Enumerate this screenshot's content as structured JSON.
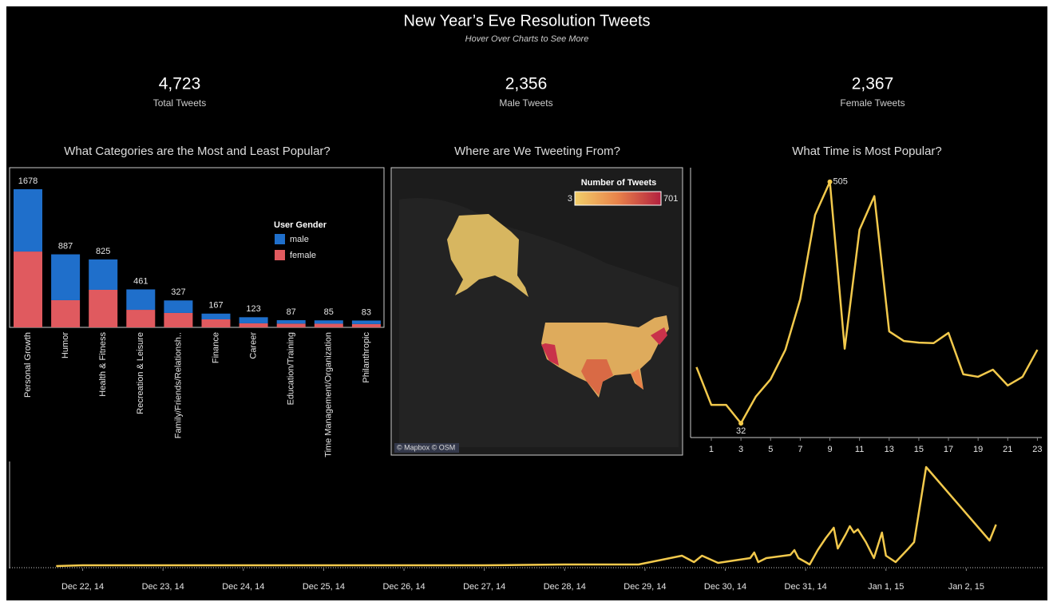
{
  "header": {
    "title": "New Year’s Eve Resolution Tweets",
    "subtitle": "Hover Over Charts to See More"
  },
  "kpis": [
    {
      "value": "4,723",
      "label": "Total Tweets"
    },
    {
      "value": "2,356",
      "label": "Male Tweets"
    },
    {
      "value": "2,367",
      "label": "Female Tweets"
    }
  ],
  "map": {
    "title": "Where are We Tweeting From?",
    "legend_title": "Number of Tweets",
    "range": [
      3,
      701
    ],
    "credit": "© Mapbox © OSM"
  },
  "chart_data": [
    {
      "type": "bar",
      "stacked": true,
      "title": "What Categories are the Most and Least Popular?",
      "legend_title": "User Gender",
      "categories": [
        "Personal Growth",
        "Humor",
        "Health & Fitness",
        "Recreation & Leisure",
        "Family/Friends/Relationsh..",
        "Finance",
        "Career",
        "Education/Training",
        "Time Management/Organization",
        "Philanthropic"
      ],
      "series": [
        {
          "name": "male",
          "color": "#1f6fcb",
          "values": [
            757,
            557,
            369,
            248,
            152,
            70,
            74,
            42,
            41,
            43
          ]
        },
        {
          "name": "female",
          "color": "#e05a5f",
          "values": [
            921,
            330,
            456,
            213,
            175,
            97,
            49,
            45,
            44,
            40
          ]
        }
      ],
      "totals": [
        1678,
        887,
        825,
        461,
        327,
        167,
        123,
        87,
        85,
        83
      ]
    },
    {
      "type": "line",
      "title": "What Time is Most Popular?",
      "x": [
        0,
        1,
        2,
        3,
        4,
        5,
        6,
        7,
        8,
        9,
        10,
        11,
        12,
        13,
        14,
        15,
        16,
        17,
        18,
        19,
        20,
        21,
        22,
        23
      ],
      "series": [
        {
          "color": "#f2c94c",
          "values": [
            142,
            68,
            68,
            32,
            84,
            118,
            176,
            275,
            440,
            505,
            178,
            411,
            477,
            212,
            193,
            190,
            189,
            209,
            128,
            123,
            137,
            106,
            123,
            176
          ]
        }
      ],
      "xlim": [
        -0.4,
        23.3
      ],
      "xticks": [
        1,
        3,
        5,
        7,
        9,
        11,
        13,
        15,
        17,
        19,
        21,
        23
      ],
      "ylim": [
        4,
        528
      ]
    },
    {
      "type": "line",
      "x": [
        -0.33,
        0,
        1,
        2,
        3,
        4,
        5,
        6,
        6.52,
        6.92,
        7.46,
        7.61,
        7.71,
        7.91,
        8.31,
        8.36,
        8.41,
        8.51,
        8.81,
        8.86,
        8.91,
        9.0,
        9.05,
        9.15,
        9.25,
        9.35,
        9.4,
        9.5,
        9.55,
        9.6,
        9.65,
        9.75,
        9.85,
        9.95,
        10.0,
        10.12,
        10.28,
        10.35,
        10.5,
        11.29,
        11.37
      ],
      "series": [
        {
          "color": "#f2c94c",
          "values": [
            2,
            3,
            3,
            3,
            3,
            3,
            3,
            4,
            4,
            4,
            15,
            7,
            15,
            6,
            12,
            19,
            7,
            12,
            16,
            22,
            12,
            7,
            4,
            22,
            37,
            50,
            24,
            42,
            52,
            44,
            48,
            32,
            12,
            44,
            15,
            7,
            24,
            32,
            126,
            34,
            54
          ]
        }
      ],
      "xlim": [
        -0.91,
        11.97
      ],
      "ylim": [
        0,
        130
      ],
      "xticks": [
        {
          "value": 0,
          "label": "Dec 22, 14"
        },
        {
          "value": 1,
          "label": "Dec 23, 14"
        },
        {
          "value": 2,
          "label": "Dec 24, 14"
        },
        {
          "value": 3,
          "label": "Dec 25, 14"
        },
        {
          "value": 4,
          "label": "Dec 26, 14"
        },
        {
          "value": 5,
          "label": "Dec 27, 14"
        },
        {
          "value": 6,
          "label": "Dec 28, 14"
        },
        {
          "value": 7,
          "label": "Dec 29, 14"
        },
        {
          "value": 8,
          "label": "Dec 30, 14"
        },
        {
          "value": 9,
          "label": "Dec 31, 14"
        },
        {
          "value": 10,
          "label": "Jan 1, 15"
        },
        {
          "value": 11,
          "label": "Jan 2, 15"
        }
      ]
    }
  ]
}
